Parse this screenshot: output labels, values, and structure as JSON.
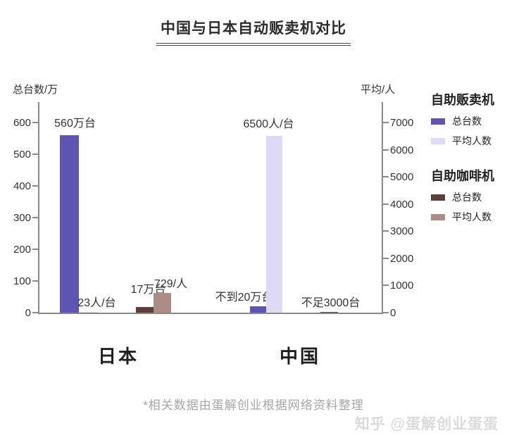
{
  "title": {
    "text": "中国与日本自动贩卖机对比"
  },
  "footnote": "*相关数据由蛋解创业根据网络资料整理",
  "watermark": "知乎 @蛋解创业蛋蛋",
  "colors": {
    "vending_total": "#5d54b3",
    "vending_avg": "#dedaf5",
    "coffee_total": "#5a4038",
    "coffee_avg": "#ac8d86",
    "axis": "#8a8a8a"
  },
  "legend": {
    "groups": [
      {
        "title": "自助贩卖机",
        "items": [
          {
            "label": "总台数",
            "color_key": "vending_total"
          },
          {
            "label": "平均人数",
            "color_key": "vending_avg"
          }
        ]
      },
      {
        "title": "自助咖啡机",
        "items": [
          {
            "label": "总台数",
            "color_key": "coffee_total"
          },
          {
            "label": "平均人数",
            "color_key": "coffee_avg"
          }
        ]
      }
    ]
  },
  "chart_data": {
    "type": "bar",
    "title": "中国与日本自动贩卖机对比",
    "dual_axis": true,
    "grid": false,
    "legend_position": "right",
    "left_axis": {
      "label": "总台数/万",
      "ticks": [
        0,
        100,
        200,
        300,
        400,
        500,
        600
      ],
      "max": 600
    },
    "right_axis": {
      "label": "平均/人",
      "ticks": [
        0,
        1000,
        2000,
        3000,
        4000,
        5000,
        6000,
        7000
      ],
      "max": 7000
    },
    "groups": [
      {
        "category": "日本",
        "bars": [
          {
            "series": "自助贩卖机 总台数",
            "axis": "left",
            "value": 560,
            "label": "560万台",
            "color_key": "vending_total"
          },
          {
            "series": "自助贩卖机 平均人数",
            "axis": "right",
            "value": 23,
            "label": "23人/台",
            "color_key": "vending_avg"
          },
          {
            "series": "自助咖啡机 总台数",
            "axis": "left",
            "value": 17,
            "label": "17万台",
            "color_key": "coffee_total"
          },
          {
            "series": "自助咖啡机 平均人数",
            "axis": "right",
            "value": 729,
            "label": "729/人",
            "color_key": "coffee_avg"
          }
        ]
      },
      {
        "category": "中国",
        "bars": [
          {
            "series": "自助贩卖机 总台数",
            "axis": "left",
            "value": 20,
            "label": "不到20万台",
            "color_key": "vending_total"
          },
          {
            "series": "自助贩卖机 平均人数",
            "axis": "right",
            "value": 6500,
            "label": "6500人/台",
            "color_key": "vending_avg"
          },
          {
            "series": "自助咖啡机 总台数",
            "axis": "left",
            "value": 0.3,
            "label": "不足3000台",
            "color_key": "coffee_total"
          }
        ]
      }
    ]
  }
}
